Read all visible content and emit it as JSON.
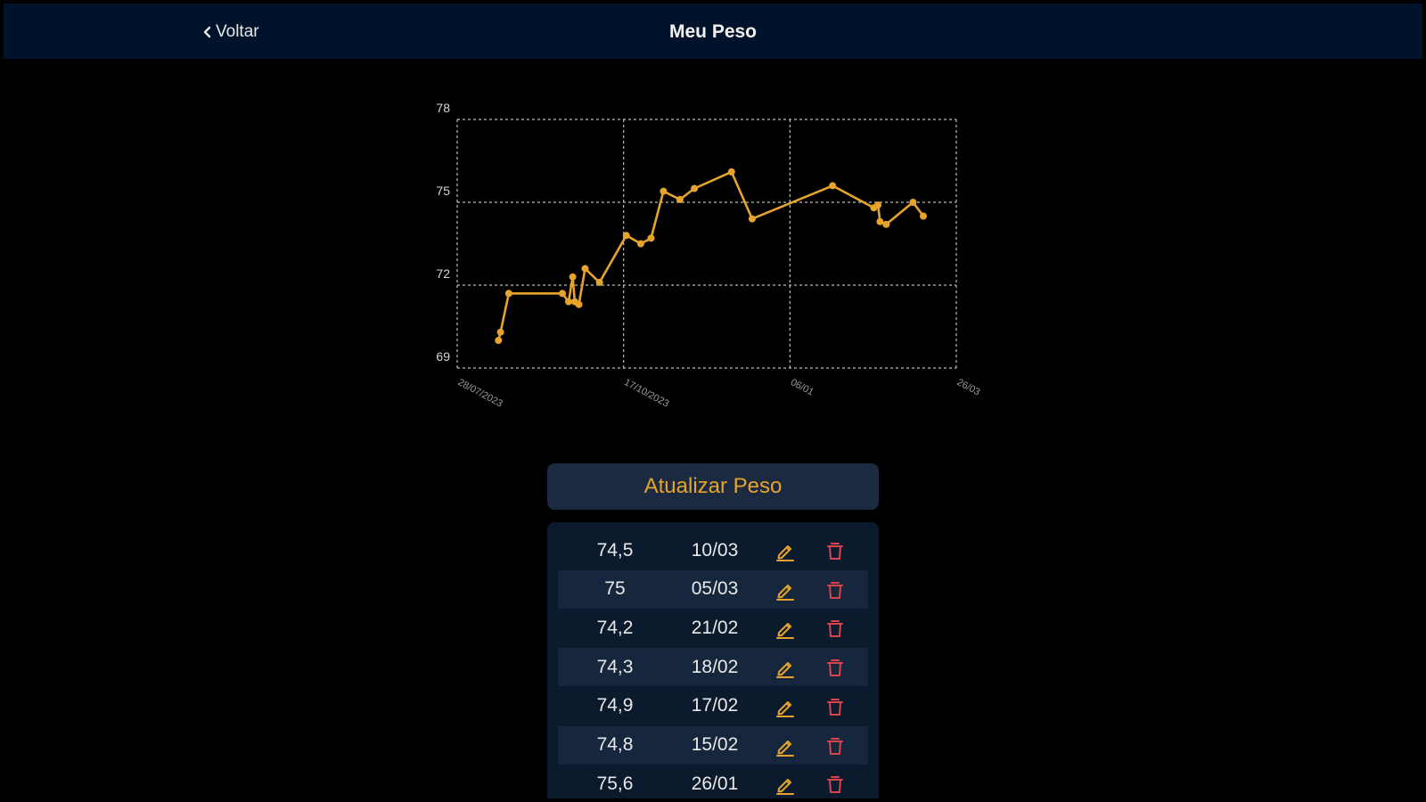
{
  "header": {
    "back_label": "Voltar",
    "title": "Meu Peso"
  },
  "colors": {
    "accent": "#e6a42b",
    "header_bg": "#01132a",
    "danger": "#d9434b",
    "panel": "#0c1a2e",
    "panel_alt": "#16263d"
  },
  "icons": {
    "back": "chevron-left-icon",
    "edit": "pencil-icon",
    "delete": "trash-icon"
  },
  "update_button_label": "Atualizar Peso",
  "chart_data": {
    "type": "line",
    "title": "",
    "xlabel": "",
    "ylabel": "",
    "ylim": [
      69,
      78
    ],
    "yticks": [
      "69",
      "72",
      "75",
      "78"
    ],
    "xticks": [
      "28/07/2023",
      "17/10/2023",
      "06/01",
      "26/03"
    ],
    "grid": true,
    "series": [
      {
        "color": "#e6a42b",
        "points": [
          [
            "2023-08-17",
            70.0
          ],
          [
            "2023-08-18",
            70.3
          ],
          [
            "2023-08-22",
            71.7
          ],
          [
            "2023-09-17",
            71.7
          ],
          [
            "2023-09-20",
            71.4
          ],
          [
            "2023-09-22",
            72.3
          ],
          [
            "2023-09-23",
            71.4
          ],
          [
            "2023-09-25",
            71.3
          ],
          [
            "2023-09-28",
            72.6
          ],
          [
            "2023-10-05",
            72.1
          ],
          [
            "2023-10-18",
            73.8
          ],
          [
            "2023-10-25",
            73.5
          ],
          [
            "2023-10-30",
            73.7
          ],
          [
            "2023-11-05",
            75.4
          ],
          [
            "2023-11-13",
            75.1
          ],
          [
            "2023-11-20",
            75.5
          ],
          [
            "2023-12-08",
            76.1
          ],
          [
            "2023-12-18",
            74.4
          ],
          [
            "2024-01-26",
            75.6
          ],
          [
            "2024-02-15",
            74.8
          ],
          [
            "2024-02-17",
            74.9
          ],
          [
            "2024-02-18",
            74.3
          ],
          [
            "2024-02-21",
            74.2
          ],
          [
            "2024-03-05",
            75.0
          ],
          [
            "2024-03-10",
            74.5
          ]
        ]
      }
    ]
  },
  "entries": [
    {
      "weight": "74,5",
      "date": "10/03"
    },
    {
      "weight": "75",
      "date": "05/03"
    },
    {
      "weight": "74,2",
      "date": "21/02"
    },
    {
      "weight": "74,3",
      "date": "18/02"
    },
    {
      "weight": "74,9",
      "date": "17/02"
    },
    {
      "weight": "74,8",
      "date": "15/02"
    },
    {
      "weight": "75,6",
      "date": "26/01"
    }
  ]
}
